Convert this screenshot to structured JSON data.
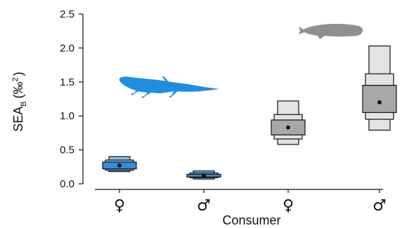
{
  "chart_data": {
    "type": "density-boxplot",
    "xlabel": "Consumer",
    "ylabel_main": "SEA",
    "ylabel_sub": "B",
    "ylabel_unit_open": "(‰",
    "ylabel_unit_sup": "2",
    "ylabel_unit_close": ")",
    "ylim": [
      0,
      2.5
    ],
    "yticks": [
      "0.0",
      "0.5",
      "1.0",
      "1.5",
      "2.0",
      "2.5"
    ],
    "categories": [
      "♀",
      "♂",
      "♀",
      "♂"
    ],
    "groups": [
      {
        "category": "♀",
        "consumer_icon": "salamander-icon",
        "color": "#2f8fd8",
        "light_color": "#8cc3ea",
        "mode": 0.27,
        "ci50": [
          0.22,
          0.32
        ],
        "ci75": [
          0.2,
          0.35
        ],
        "ci95": [
          0.18,
          0.4
        ]
      },
      {
        "category": "♂",
        "consumer_icon": "salamander-icon",
        "color": "#2f8fd8",
        "light_color": "#8cc3ea",
        "mode": 0.12,
        "ci50": [
          0.1,
          0.14
        ],
        "ci75": [
          0.09,
          0.16
        ],
        "ci95": [
          0.07,
          0.19
        ]
      },
      {
        "category": "♀",
        "consumer_icon": "fish-icon",
        "color": "#a8a8a8",
        "light_color": "#e3e3e3",
        "mode": 0.83,
        "ci50": [
          0.72,
          0.94
        ],
        "ci75": [
          0.66,
          1.02
        ],
        "ci95": [
          0.58,
          1.22
        ]
      },
      {
        "category": "♂",
        "consumer_icon": "fish-icon",
        "color": "#a8a8a8",
        "light_color": "#e3e3e3",
        "mode": 1.2,
        "ci50": [
          1.05,
          1.45
        ],
        "ci75": [
          0.95,
          1.62
        ],
        "ci95": [
          0.79,
          2.03
        ]
      }
    ],
    "colors": {
      "salamander": "#1e8fe0",
      "fish": "#909090",
      "outline": "#111111"
    }
  }
}
